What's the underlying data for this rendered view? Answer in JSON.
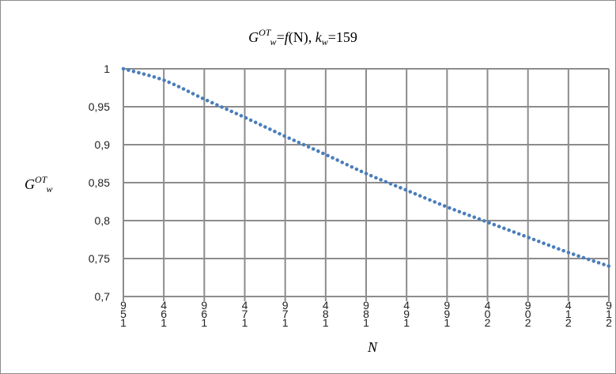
{
  "chart_data": {
    "type": "line",
    "title_parts": {
      "g": "G",
      "ot": "OT",
      "w": "w",
      "eq": "=",
      "f": "f",
      "n": "(N), ",
      "k": "k",
      "kw": "w",
      "kval": "=159"
    },
    "ylabel_parts": {
      "g": "G",
      "ot": "OT",
      "w": "w"
    },
    "xlabel": "N",
    "ylim": [
      0.7,
      1.0
    ],
    "y_ticks": [
      "1",
      "0,95",
      "0,9",
      "0,85",
      "0,8",
      "0,75",
      "0,7"
    ],
    "x_tick_labels": [
      [
        "9",
        "5",
        "1"
      ],
      [
        "4",
        "6",
        "1"
      ],
      [
        "9",
        "6",
        "1"
      ],
      [
        "4",
        "7",
        "1"
      ],
      [
        "9",
        "7",
        "1"
      ],
      [
        "4",
        "8",
        "1"
      ],
      [
        "9",
        "8",
        "1"
      ],
      [
        "4",
        "9",
        "1"
      ],
      [
        "9",
        "9",
        "1"
      ],
      [
        "4",
        "0",
        "2"
      ],
      [
        "9",
        "0",
        "2"
      ],
      [
        "4",
        "1",
        "2"
      ],
      [
        "9",
        "1",
        "2"
      ]
    ],
    "x": [
      159,
      164,
      169,
      174,
      179,
      184,
      189,
      194,
      199,
      204,
      209,
      214,
      219
    ],
    "series": [
      {
        "style": "dotted",
        "color": "#4a7ebb",
        "values": [
          1.0,
          0.985,
          0.96,
          0.936,
          0.911,
          0.887,
          0.862,
          0.84,
          0.818,
          0.798,
          0.778,
          0.758,
          0.74
        ]
      }
    ],
    "grid": true,
    "legend": "none"
  }
}
